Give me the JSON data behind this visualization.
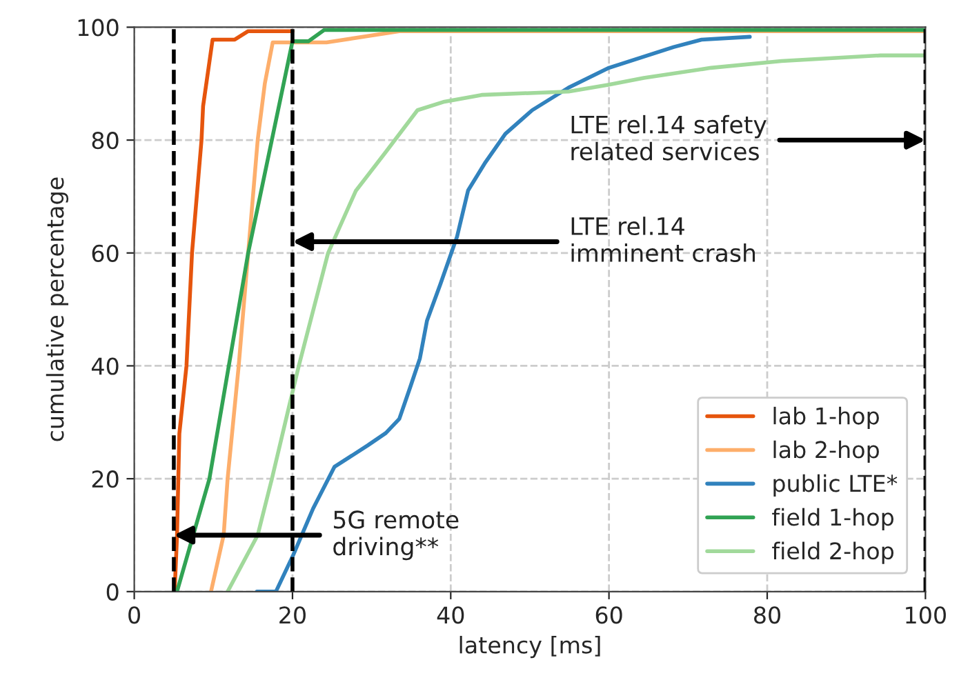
{
  "chart_data": {
    "type": "line",
    "xlabel": "latency [ms]",
    "ylabel": "cumulative percentage",
    "xlim": [
      0,
      100
    ],
    "ylim": [
      0,
      100
    ],
    "xticks": [
      0,
      20,
      40,
      60,
      80,
      100
    ],
    "yticks": [
      0,
      20,
      40,
      60,
      80,
      100
    ],
    "grid": true,
    "legend": "bottom right",
    "marker": "none",
    "line_style": "solid",
    "series": [
      {
        "name": "lab 1-hop",
        "color": "#e6550d",
        "x": [
          5.1,
          5.4,
          5.7,
          6.6,
          7.3,
          8.5,
          8.7,
          9.9,
          12.7,
          14.4,
          20
        ],
        "values": [
          0,
          9.7,
          28,
          40,
          60,
          80,
          86,
          97.8,
          97.8,
          99.3,
          99.3
        ]
      },
      {
        "name": "lab 2-hop",
        "color": "#fdae6b",
        "x": [
          9.7,
          11.3,
          11.8,
          13.2,
          14.4,
          15.6,
          16.5,
          17.5,
          24.3,
          33.5,
          100
        ],
        "values": [
          0,
          10,
          20,
          40,
          60,
          80,
          90,
          97.3,
          97.3,
          99.3,
          99.3
        ]
      },
      {
        "name": "public LTE*",
        "color": "#3182bd",
        "x": [
          15.5,
          17.9,
          20.1,
          22.6,
          25.3,
          29.5,
          31.8,
          33.5,
          34.9,
          36.1,
          37,
          38.7,
          40.8,
          42.2,
          44.4,
          46.9,
          50.3,
          54.9,
          60,
          68.2,
          71.7,
          77.8
        ],
        "values": [
          0,
          0,
          6.5,
          14.7,
          22.1,
          25.9,
          28.1,
          30.6,
          36.3,
          41.3,
          48,
          54.5,
          62.9,
          71.1,
          76.1,
          81.1,
          85.3,
          89.3,
          92.8,
          96.5,
          97.8,
          98.3
        ]
      },
      {
        "name": "field 1-hop",
        "color": "#31a354",
        "x": [
          5.4,
          9.5,
          14.4,
          20,
          22,
          24,
          100
        ],
        "values": [
          0,
          20,
          60,
          97.5,
          97.5,
          99.5,
          99.5
        ]
      },
      {
        "name": "field 2-hop",
        "color": "#a1d99b",
        "x": [
          11.8,
          15.6,
          17.4,
          19.6,
          20.8,
          24.5,
          28,
          31.8,
          35.8,
          39.2,
          43.9,
          54.9,
          59.9,
          64.4,
          72.9,
          81.8,
          94.3,
          100
        ],
        "values": [
          0,
          10,
          20,
          33,
          40,
          60,
          71,
          77.9,
          85.3,
          86.8,
          88,
          88.6,
          89.8,
          91,
          92.8,
          94,
          95,
          95
        ]
      }
    ],
    "ref_lines": [
      {
        "axis": "x",
        "value": 5,
        "color": "#000000",
        "line_style": "dashed"
      },
      {
        "axis": "x",
        "value": 20,
        "color": "#000000",
        "line_style": "dashed"
      },
      {
        "axis": "x",
        "value": 100,
        "color": "#000000",
        "line_style": "dashed"
      }
    ],
    "annotations": [
      {
        "text": "5G remote\ndriving**",
        "x": 5,
        "y": 10
      },
      {
        "text": "LTE rel.14\nimminent crash",
        "x": 20,
        "y": 62
      },
      {
        "text": "LTE rel.14 safety\nrelated services",
        "x": 100,
        "y": 80
      }
    ]
  }
}
